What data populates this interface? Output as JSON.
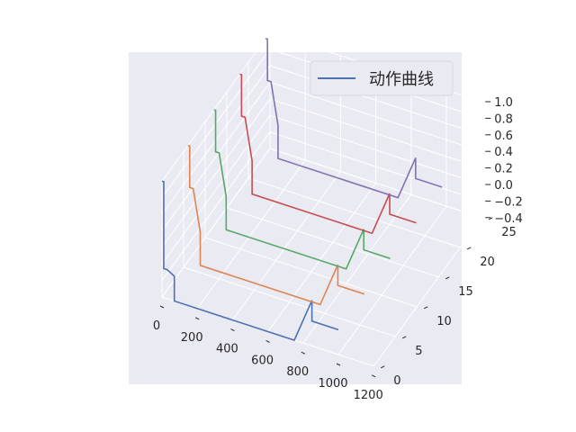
{
  "chart_data": {
    "type": "line",
    "projection": "3d",
    "style": "seaborn-darkgrid",
    "legend": {
      "label": "动作曲线",
      "placement": "upper-right"
    },
    "x_ticks": [
      "0",
      "200",
      "400",
      "600",
      "800",
      "1000",
      "1200"
    ],
    "y_ticks": [
      "0",
      "5",
      "10",
      "15",
      "20",
      "25"
    ],
    "z_ticks": [
      "−0.4",
      "−0.2",
      "0.0",
      "0.2",
      "0.4",
      "0.6",
      "0.8",
      "1.0"
    ],
    "xlim": [
      0,
      1200
    ],
    "ylim": [
      0,
      25
    ],
    "zlim": [
      -0.4,
      1.0
    ],
    "grid": true,
    "series": [
      {
        "y": 0,
        "color": "#4c72b0",
        "x": [
          0,
          10,
          10,
          30,
          30,
          70,
          70,
          750,
          850,
          850,
          1000
        ],
        "z": [
          1.0,
          1.0,
          -0.05,
          -0.05,
          -0.05,
          -0.1,
          -0.4,
          -0.4,
          0.15,
          -0.1,
          -0.1
        ]
      },
      {
        "y": 6,
        "color": "#dd8452",
        "x": [
          0,
          10,
          10,
          30,
          30,
          70,
          70,
          750,
          850,
          850,
          1000
        ],
        "z": [
          1.0,
          1.0,
          0.5,
          0.5,
          0.5,
          0.0,
          -0.4,
          -0.4,
          0.15,
          -0.1,
          -0.1
        ]
      },
      {
        "y": 12,
        "color": "#55a868",
        "x": [
          0,
          10,
          10,
          30,
          30,
          70,
          70,
          750,
          850,
          850,
          1000
        ],
        "z": [
          1.0,
          1.0,
          0.5,
          0.5,
          0.5,
          0.0,
          -0.4,
          -0.4,
          0.15,
          -0.1,
          -0.1
        ]
      },
      {
        "y": 18,
        "color": "#c44e52",
        "x": [
          0,
          10,
          10,
          30,
          30,
          70,
          70,
          750,
          850,
          850,
          1000
        ],
        "z": [
          1.0,
          1.0,
          0.5,
          0.5,
          0.5,
          0.0,
          -0.4,
          -0.4,
          0.15,
          -0.1,
          -0.1
        ]
      },
      {
        "y": 24,
        "color": "#8172b3",
        "x": [
          0,
          10,
          10,
          30,
          30,
          70,
          70,
          750,
          850,
          850,
          1000
        ],
        "z": [
          1.0,
          1.0,
          0.5,
          0.5,
          0.5,
          0.0,
          -0.4,
          -0.4,
          0.15,
          -0.1,
          -0.1
        ]
      }
    ]
  },
  "colors": {
    "axes_bg": "#eaeaf2",
    "grid": "#ffffff",
    "legend_line": "#4c72b0"
  }
}
